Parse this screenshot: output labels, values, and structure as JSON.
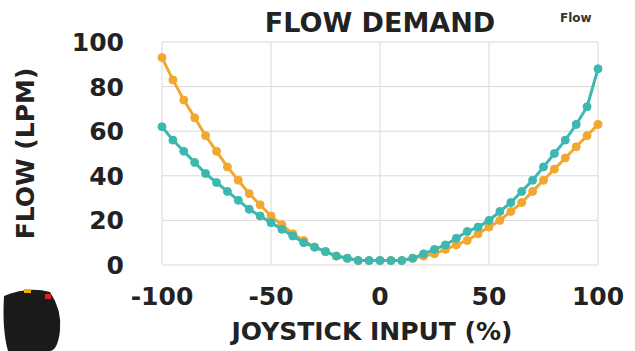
{
  "chart_data": {
    "type": "line",
    "title": "FLOW DEMAND",
    "subtitle": "Flow",
    "x_label": "JOYSTICK INPUT (%)",
    "y_label": "FLOW (LPM)",
    "x": [
      -100,
      -95,
      -90,
      -85,
      -80,
      -75,
      -70,
      -65,
      -60,
      -55,
      -50,
      -45,
      -40,
      -35,
      -30,
      -25,
      -20,
      -15,
      -10,
      -5,
      0,
      5,
      10,
      15,
      20,
      25,
      30,
      35,
      40,
      45,
      50,
      55,
      60,
      65,
      70,
      75,
      80,
      85,
      90,
      95,
      100
    ],
    "series": [
      {
        "color": "#f0a830",
        "marker": "circle",
        "line_style": "solid",
        "values": [
          93,
          83,
          74,
          66,
          58,
          51,
          44,
          38,
          32,
          27,
          22,
          18,
          14,
          11,
          8,
          6,
          4,
          3,
          2,
          2,
          2,
          2,
          2,
          3,
          4,
          5,
          7,
          9,
          11,
          14,
          17,
          20,
          24,
          28,
          33,
          38,
          43,
          48,
          53,
          58,
          63
        ]
      },
      {
        "color": "#3cb8b0",
        "marker": "circle",
        "line_style": "solid",
        "values": [
          62,
          56,
          51,
          46,
          41,
          37,
          33,
          29,
          25,
          22,
          19,
          16,
          13,
          10,
          8,
          6,
          4,
          3,
          2,
          2,
          2,
          2,
          2,
          3,
          5,
          7,
          9,
          12,
          15,
          17,
          20,
          24,
          28,
          33,
          38,
          44,
          50,
          56,
          63,
          71,
          88
        ]
      }
    ],
    "xlim": [
      -100,
      100
    ],
    "ylim": [
      0,
      100
    ],
    "xticks": [
      -100,
      -50,
      0,
      50,
      100
    ],
    "yticks": [
      0,
      20,
      40,
      60,
      80,
      100
    ],
    "grid": true
  }
}
